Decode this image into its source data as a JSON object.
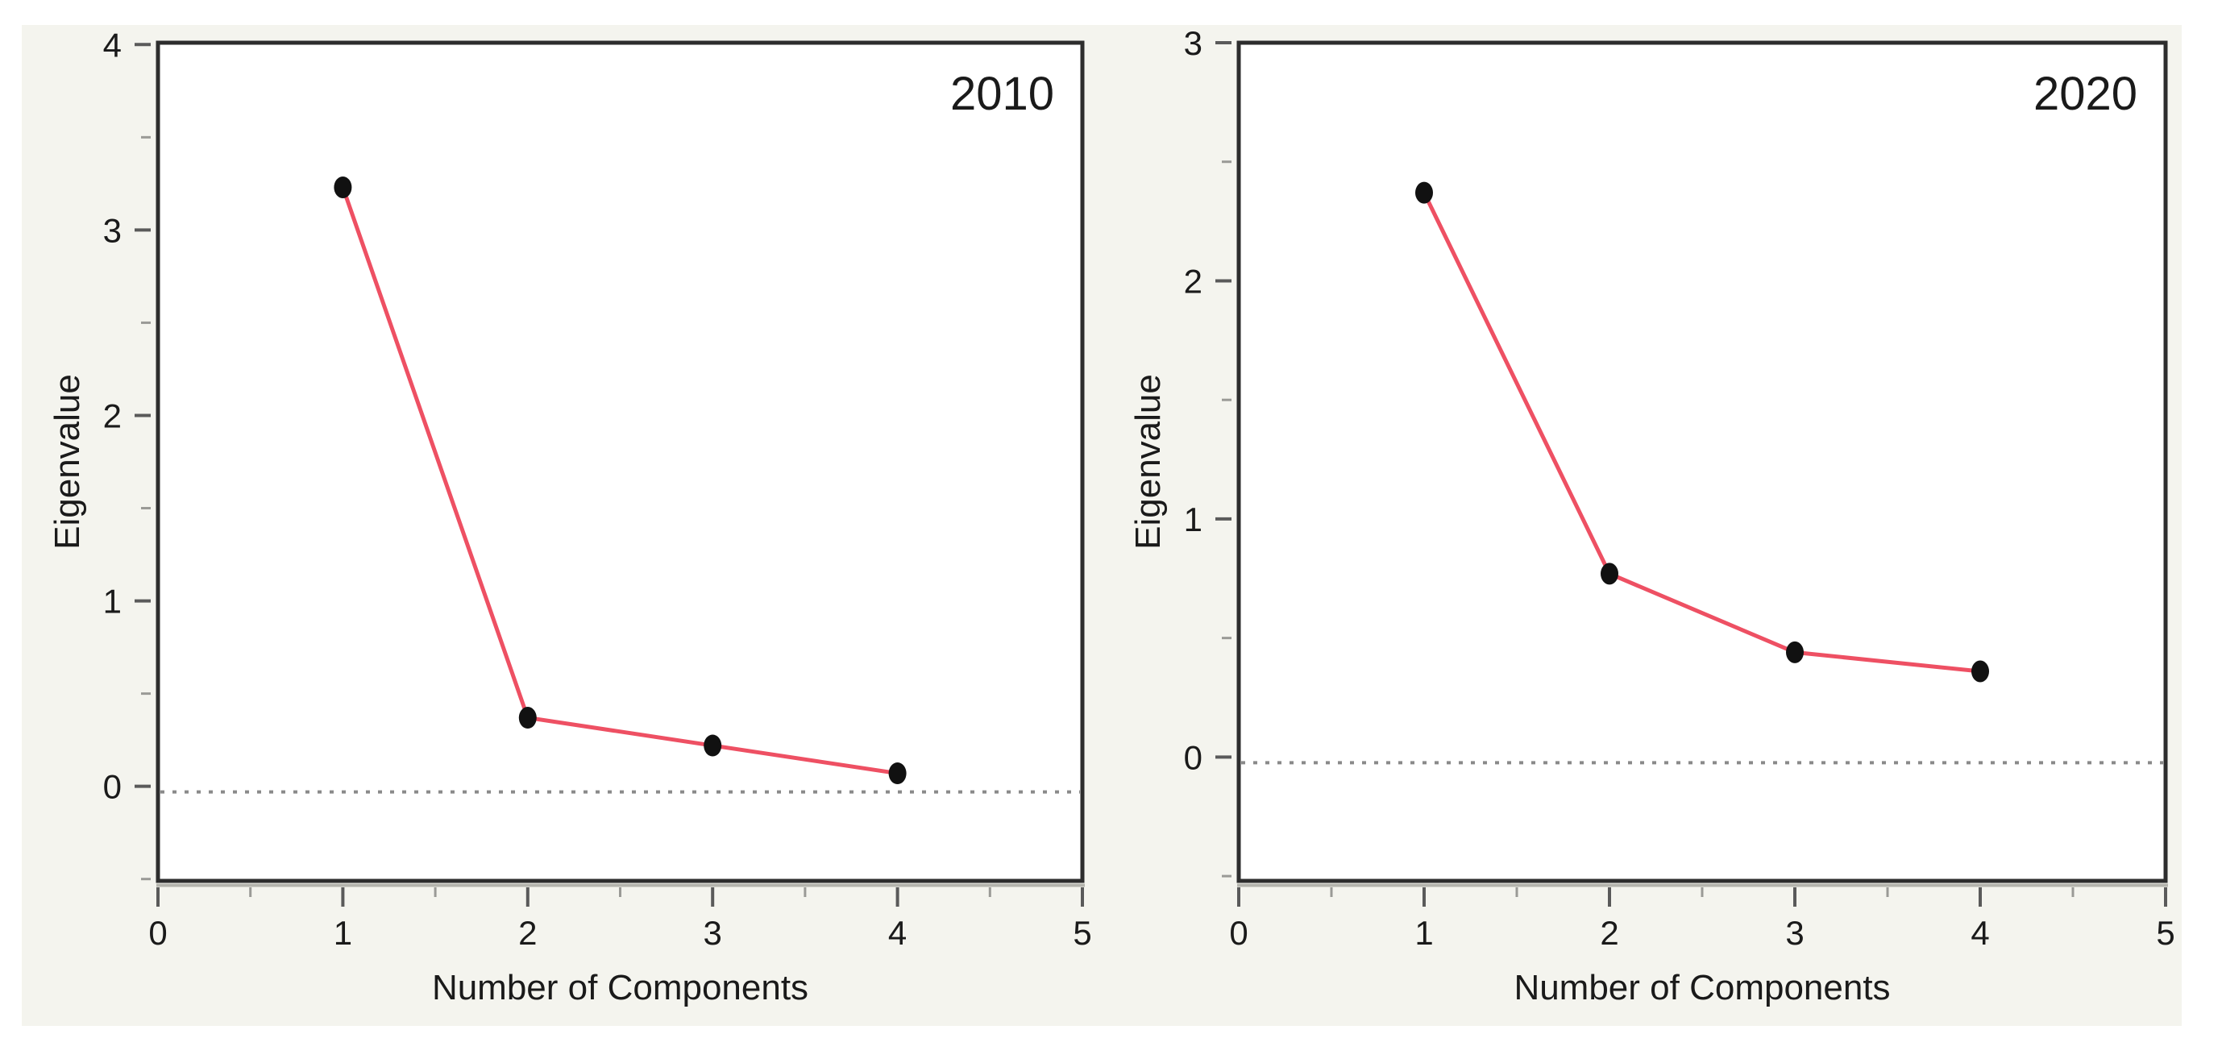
{
  "page": {
    "background_color": "#ffffff",
    "canvas_color": "#f4f4ee"
  },
  "colors": {
    "line": "#ee5063",
    "marker": "#111111",
    "frame": "#2d2d2d",
    "frame_shadow": "#b3b3ac",
    "plot_background": "#ffffff",
    "major_tick": "#5a5a5a",
    "minor_tick": "#9a9a96",
    "reference_line": "#8a8a8a",
    "text": "#1a1a1a"
  },
  "chart_data": [
    {
      "type": "line",
      "title": "2010",
      "xlabel": "Number of Components",
      "ylabel": "Eigenvalue",
      "x": [
        1,
        2,
        3,
        4
      ],
      "values": [
        3.23,
        0.37,
        0.22,
        0.07
      ],
      "xlim": [
        0,
        5
      ],
      "ylim": [
        -0.51,
        4.01
      ],
      "x_ticks": [
        0,
        1,
        2,
        3,
        4,
        5
      ],
      "y_ticks": [
        0,
        1,
        2,
        3,
        4
      ],
      "x_minor_ticks": [
        0.5,
        1.5,
        2.5,
        3.5,
        4.5
      ],
      "y_minor_ticks": [
        -0.5,
        0.5,
        1.5,
        2.5,
        3.5
      ],
      "reference_line_y": 0,
      "grid": false,
      "legend": "none",
      "marker": "filled-circle"
    },
    {
      "type": "line",
      "title": "2020",
      "xlabel": "Number of Components",
      "ylabel": "Eigenvalue",
      "x": [
        1,
        2,
        3,
        4
      ],
      "values": [
        2.37,
        0.77,
        0.44,
        0.36
      ],
      "xlim": [
        0,
        5
      ],
      "ylim": [
        -0.52,
        3.0
      ],
      "x_ticks": [
        0,
        1,
        2,
        3,
        4,
        5
      ],
      "y_ticks": [
        0,
        1,
        2,
        3
      ],
      "x_minor_ticks": [
        0.5,
        1.5,
        2.5,
        3.5,
        4.5
      ],
      "y_minor_ticks": [
        -0.5,
        0.5,
        1.5,
        2.5
      ],
      "reference_line_y": 0,
      "grid": false,
      "legend": "none",
      "marker": "filled-circle"
    }
  ]
}
